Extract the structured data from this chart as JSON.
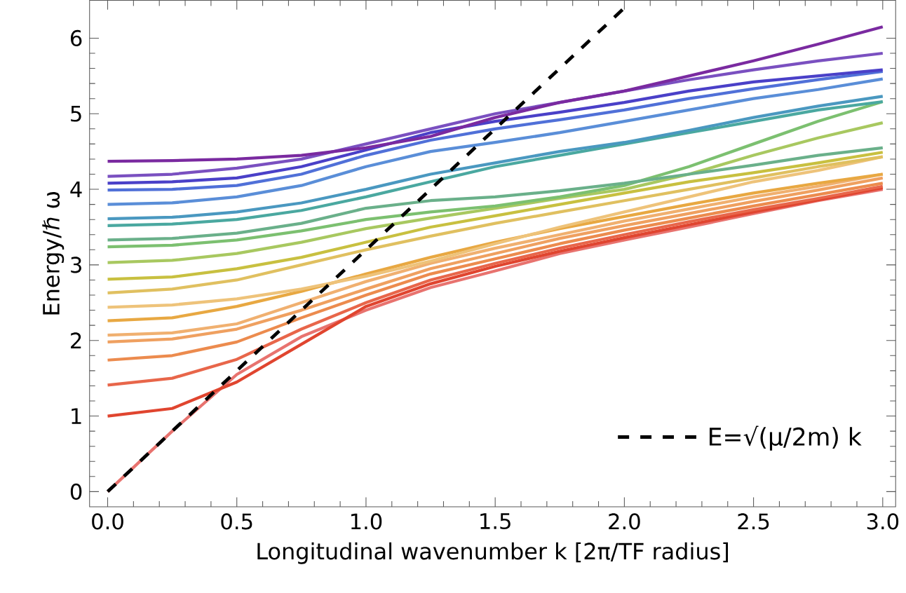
{
  "chart_data": {
    "type": "line",
    "xlabel": "Longitudinal wavenumber k [2π/TF radius]",
    "ylabel": "Energy/ℏ ω",
    "x": [
      0,
      0.25,
      0.5,
      0.75,
      1,
      1.25,
      1.5,
      1.75,
      2,
      2.25,
      2.5,
      2.75,
      3
    ],
    "xlim": [
      -0.07,
      3.05
    ],
    "ylim": [
      -0.2,
      6.5
    ],
    "xticks": [
      {
        "value": 0,
        "label": "0.0"
      },
      {
        "value": 0.5,
        "label": "0.5"
      },
      {
        "value": 1,
        "label": "1.0"
      },
      {
        "value": 1.5,
        "label": "1.5"
      },
      {
        "value": 2,
        "label": "2.0"
      },
      {
        "value": 2.5,
        "label": "2.5"
      },
      {
        "value": 3,
        "label": "3.0"
      }
    ],
    "yticks": [
      0,
      1,
      2,
      3,
      4,
      5,
      6
    ],
    "grid": false,
    "legend": "bottom right",
    "marker": "none",
    "series": [
      {
        "color": "#e8736f",
        "values": [
          0,
          0.8,
          1.55,
          2.05,
          2.4,
          2.7,
          2.92,
          3.15,
          3.33,
          3.5,
          3.68,
          3.85,
          4.0
        ]
      },
      {
        "color": "#e0452f",
        "values": [
          1.0,
          1.1,
          1.45,
          1.95,
          2.45,
          2.75,
          2.98,
          3.18,
          3.36,
          3.53,
          3.7,
          3.86,
          4.02
        ]
      },
      {
        "color": "#e8664a",
        "values": [
          1.41,
          1.5,
          1.75,
          2.15,
          2.5,
          2.8,
          3.02,
          3.22,
          3.4,
          3.57,
          3.73,
          3.88,
          4.04
        ]
      },
      {
        "color": "#ec8b4e",
        "values": [
          1.74,
          1.8,
          1.98,
          2.3,
          2.6,
          2.88,
          3.08,
          3.28,
          3.46,
          3.62,
          3.78,
          3.93,
          4.08
        ]
      },
      {
        "color": "#efa060",
        "values": [
          1.98,
          2.02,
          2.15,
          2.4,
          2.68,
          2.95,
          3.15,
          3.35,
          3.52,
          3.68,
          3.84,
          3.99,
          4.15
        ]
      },
      {
        "color": "#f0b070",
        "values": [
          2.07,
          2.1,
          2.22,
          2.5,
          2.78,
          3.02,
          3.22,
          3.4,
          3.58,
          3.74,
          3.9,
          4.04,
          4.2
        ]
      },
      {
        "color": "#e8a842",
        "values": [
          2.26,
          2.3,
          2.45,
          2.65,
          2.88,
          3.1,
          3.3,
          3.48,
          3.64,
          3.8,
          3.95,
          4.08,
          4.2
        ]
      },
      {
        "color": "#eec37a",
        "values": [
          2.44,
          2.47,
          2.55,
          2.68,
          2.85,
          3.05,
          3.28,
          3.5,
          3.7,
          3.9,
          4.1,
          4.25,
          4.43
        ]
      },
      {
        "color": "#e0c060",
        "values": [
          2.63,
          2.68,
          2.8,
          3.0,
          3.2,
          3.38,
          3.55,
          3.7,
          3.85,
          4.0,
          4.15,
          4.3,
          4.43
        ]
      },
      {
        "color": "#c8c040",
        "values": [
          2.81,
          2.84,
          2.95,
          3.1,
          3.3,
          3.5,
          3.65,
          3.8,
          3.95,
          4.1,
          4.22,
          4.35,
          4.49
        ]
      },
      {
        "color": "#a8c860",
        "values": [
          3.03,
          3.06,
          3.15,
          3.3,
          3.48,
          3.62,
          3.75,
          3.88,
          4.0,
          4.2,
          4.45,
          4.68,
          4.88
        ]
      },
      {
        "color": "#7cc070",
        "values": [
          3.24,
          3.26,
          3.33,
          3.45,
          3.6,
          3.7,
          3.78,
          3.9,
          4.05,
          4.3,
          4.6,
          4.9,
          5.16
        ]
      },
      {
        "color": "#6ab08a",
        "values": [
          3.33,
          3.35,
          3.42,
          3.55,
          3.75,
          3.85,
          3.9,
          3.98,
          4.08,
          4.2,
          4.32,
          4.45,
          4.55
        ]
      },
      {
        "color": "#4aa8a0",
        "values": [
          3.52,
          3.54,
          3.6,
          3.72,
          3.9,
          4.1,
          4.3,
          4.45,
          4.6,
          4.75,
          4.9,
          5.05,
          5.16
        ]
      },
      {
        "color": "#4a98c0",
        "values": [
          3.61,
          3.63,
          3.7,
          3.82,
          4.0,
          4.2,
          4.35,
          4.5,
          4.62,
          4.78,
          4.95,
          5.1,
          5.23
        ]
      },
      {
        "color": "#5a8ed8",
        "values": [
          3.8,
          3.82,
          3.9,
          4.05,
          4.3,
          4.5,
          4.62,
          4.75,
          4.9,
          5.05,
          5.2,
          5.32,
          5.46
        ]
      },
      {
        "color": "#5070d8",
        "values": [
          3.99,
          4.0,
          4.05,
          4.2,
          4.45,
          4.65,
          4.8,
          4.92,
          5.05,
          5.2,
          5.33,
          5.45,
          5.56
        ]
      },
      {
        "color": "#4a40c8",
        "values": [
          4.08,
          4.1,
          4.15,
          4.3,
          4.52,
          4.75,
          4.9,
          5.02,
          5.15,
          5.3,
          5.42,
          5.5,
          5.58
        ]
      },
      {
        "color": "#7a50c0",
        "values": [
          4.17,
          4.2,
          4.28,
          4.4,
          4.6,
          4.8,
          5.0,
          5.15,
          5.3,
          5.45,
          5.58,
          5.7,
          5.8
        ]
      },
      {
        "color": "#7a2aa0",
        "values": [
          4.37,
          4.38,
          4.4,
          4.45,
          4.55,
          4.7,
          4.95,
          5.15,
          5.3,
          5.5,
          5.7,
          5.92,
          6.15
        ]
      },
      {
        "name": "E=√(μ/2m) k",
        "color": "#000000",
        "line_style": "dashed",
        "x": [
          0,
          2.0
        ],
        "values": [
          0,
          6.4
        ]
      }
    ]
  }
}
